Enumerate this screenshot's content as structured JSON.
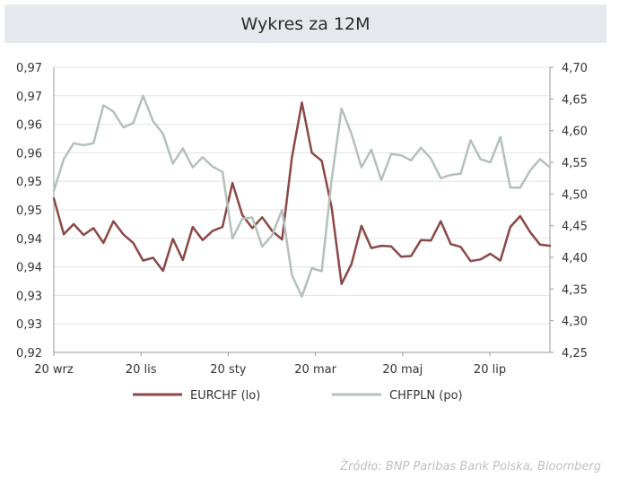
{
  "chart_data": {
    "type": "line",
    "title": "Wykres za 12M",
    "x_ticks": [
      "20 wrz",
      "20 lis",
      "20 sty",
      "20 mar",
      "20 maj",
      "20 lip"
    ],
    "y_left": {
      "ticks": [
        "0,97",
        "0,97",
        "0,96",
        "0,96",
        "0,95",
        "0,95",
        "0,94",
        "0,94",
        "0,93",
        "0,93",
        "0,92"
      ],
      "ylim": [
        0.92,
        0.97
      ]
    },
    "y_right": {
      "ticks": [
        "4,70",
        "4,65",
        "4,60",
        "4,55",
        "4,50",
        "4,45",
        "4,40",
        "4,35",
        "4,30",
        "4,25"
      ],
      "ylim": [
        4.25,
        4.7
      ]
    },
    "grid": "horizontal",
    "series": [
      {
        "name": "EURCHF (lo)",
        "axis": "left",
        "color": "#8b4846",
        "values": [
          0.947,
          0.9407,
          0.9425,
          0.9406,
          0.9418,
          0.9392,
          0.943,
          0.9407,
          0.9392,
          0.9361,
          0.9366,
          0.9343,
          0.9399,
          0.9362,
          0.942,
          0.9397,
          0.9413,
          0.942,
          0.9497,
          0.9441,
          0.9418,
          0.9437,
          0.9413,
          0.9398,
          0.9542,
          0.9638,
          0.955,
          0.9536,
          0.9454,
          0.932,
          0.9355,
          0.9422,
          0.9383,
          0.9387,
          0.9386,
          0.9368,
          0.9369,
          0.9397,
          0.9396,
          0.943,
          0.939,
          0.9385,
          0.936,
          0.9363,
          0.9373,
          0.9361,
          0.942,
          0.9439,
          0.9411,
          0.9389,
          0.9387
        ]
      },
      {
        "name": "CHFPLN (po)",
        "axis": "right",
        "color": "#b4c1bb",
        "values": [
          4.505,
          4.555,
          4.58,
          4.577,
          4.58,
          4.64,
          4.63,
          4.605,
          4.612,
          4.655,
          4.615,
          4.595,
          4.548,
          4.572,
          4.542,
          4.558,
          4.543,
          4.535,
          4.43,
          4.461,
          4.463,
          4.417,
          4.435,
          4.475,
          4.372,
          4.338,
          4.383,
          4.378,
          4.523,
          4.635,
          4.595,
          4.542,
          4.57,
          4.522,
          4.563,
          4.561,
          4.553,
          4.573,
          4.556,
          4.525,
          4.53,
          4.532,
          4.585,
          4.555,
          4.55,
          4.59,
          4.51,
          4.51,
          4.537,
          4.555,
          4.542
        ]
      }
    ]
  },
  "source": "Źródło:  BNP Paribas Bank Polska, Bloomberg"
}
